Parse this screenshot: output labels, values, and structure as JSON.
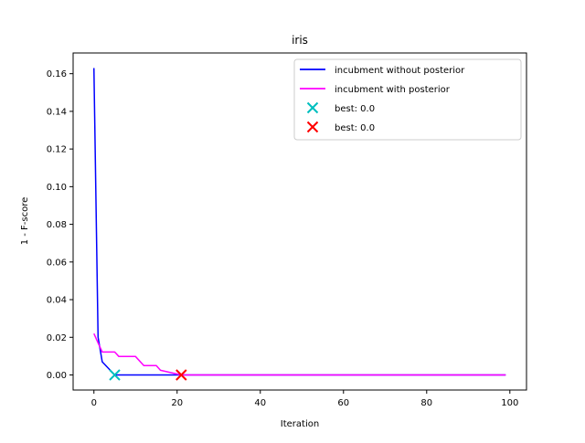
{
  "chart_data": {
    "type": "line",
    "title": "iris",
    "xlabel": "Iteration",
    "ylabel": "1 - F-score",
    "xlim": [
      -5,
      104
    ],
    "ylim": [
      -0.008,
      0.171
    ],
    "xticks": [
      0,
      20,
      40,
      60,
      80,
      100
    ],
    "xtick_labels": [
      "0",
      "20",
      "40",
      "60",
      "80",
      "100"
    ],
    "yticks": [
      0.0,
      0.02,
      0.04,
      0.06,
      0.08,
      0.1,
      0.12,
      0.14,
      0.16
    ],
    "ytick_labels": [
      "0.00",
      "0.02",
      "0.04",
      "0.06",
      "0.08",
      "0.10",
      "0.12",
      "0.14",
      "0.16"
    ],
    "grid": false,
    "legend_position": "top-right",
    "series": [
      {
        "name": "incubment without posterior",
        "kind": "line",
        "color": "#0000ff",
        "points": [
          [
            0,
            0.163
          ],
          [
            1,
            0.02
          ],
          [
            2,
            0.007
          ],
          [
            5,
            0.0
          ],
          [
            99,
            0.0
          ]
        ]
      },
      {
        "name": "incubment with posterior",
        "kind": "line",
        "color": "#ff00ff",
        "points": [
          [
            0,
            0.022
          ],
          [
            1,
            0.017
          ],
          [
            2,
            0.0122
          ],
          [
            5,
            0.0122
          ],
          [
            6,
            0.0098
          ],
          [
            10,
            0.0098
          ],
          [
            12,
            0.005
          ],
          [
            15,
            0.005
          ],
          [
            16,
            0.0025
          ],
          [
            21,
            0.0
          ],
          [
            99,
            0.0
          ]
        ]
      },
      {
        "name": "best: 0.0",
        "kind": "marker",
        "marker": "x",
        "color": "#00bfbf",
        "points": [
          [
            5,
            0.0
          ]
        ]
      },
      {
        "name": "best: 0.0",
        "kind": "marker",
        "marker": "x",
        "color": "#ff0000",
        "points": [
          [
            21,
            0.0
          ]
        ]
      }
    ]
  }
}
